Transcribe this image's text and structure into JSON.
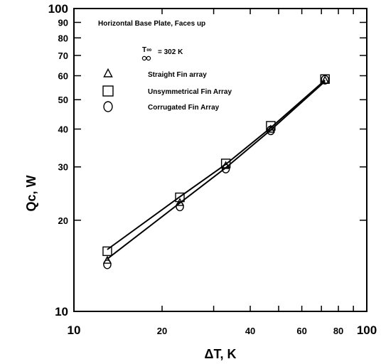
{
  "chart_data": {
    "type": "line",
    "title": "Horizontal Base Plate, Faces up",
    "ambient_note": {
      "symbol": "T∞",
      "value": "= 302 K"
    },
    "xlabel": "ΔT, K",
    "ylabel": "Qc, W",
    "xscale": "log",
    "yscale": "log",
    "xlim": [
      10,
      100
    ],
    "ylim": [
      10,
      100
    ],
    "x_ticks": [
      "10",
      "20",
      "40",
      "60",
      "80",
      "100"
    ],
    "y_ticks": [
      "10",
      "20",
      "30",
      "40",
      "50",
      "60",
      "70",
      "80",
      "90",
      "100"
    ],
    "grid": false,
    "legend_position": "top-left",
    "series": [
      {
        "name": "Straight Fin array",
        "marker": "triangle",
        "x": [
          13,
          23,
          33,
          47,
          72
        ],
        "y": [
          14.7,
          22.8,
          30.2,
          39.8,
          57.8
        ]
      },
      {
        "name": "Unsymmetrical Fin Array",
        "marker": "square",
        "x": [
          13,
          23,
          33,
          47,
          72
        ],
        "y": [
          15.8,
          23.8,
          30.8,
          41.0,
          58.5
        ]
      },
      {
        "name": "Corrugated Fin Array",
        "marker": "circle",
        "x": [
          13,
          23,
          33,
          47,
          72
        ],
        "y": [
          14.3,
          22.2,
          29.6,
          39.6,
          58.2
        ]
      }
    ],
    "fit_lines": [
      {
        "x": [
          13,
          23,
          33,
          47,
          72
        ],
        "y": [
          16.0,
          23.9,
          30.6,
          40.4,
          58.0
        ]
      },
      {
        "x": [
          13,
          23,
          33,
          47,
          72
        ],
        "y": [
          14.9,
          22.8,
          29.8,
          39.7,
          57.5
        ]
      }
    ]
  }
}
